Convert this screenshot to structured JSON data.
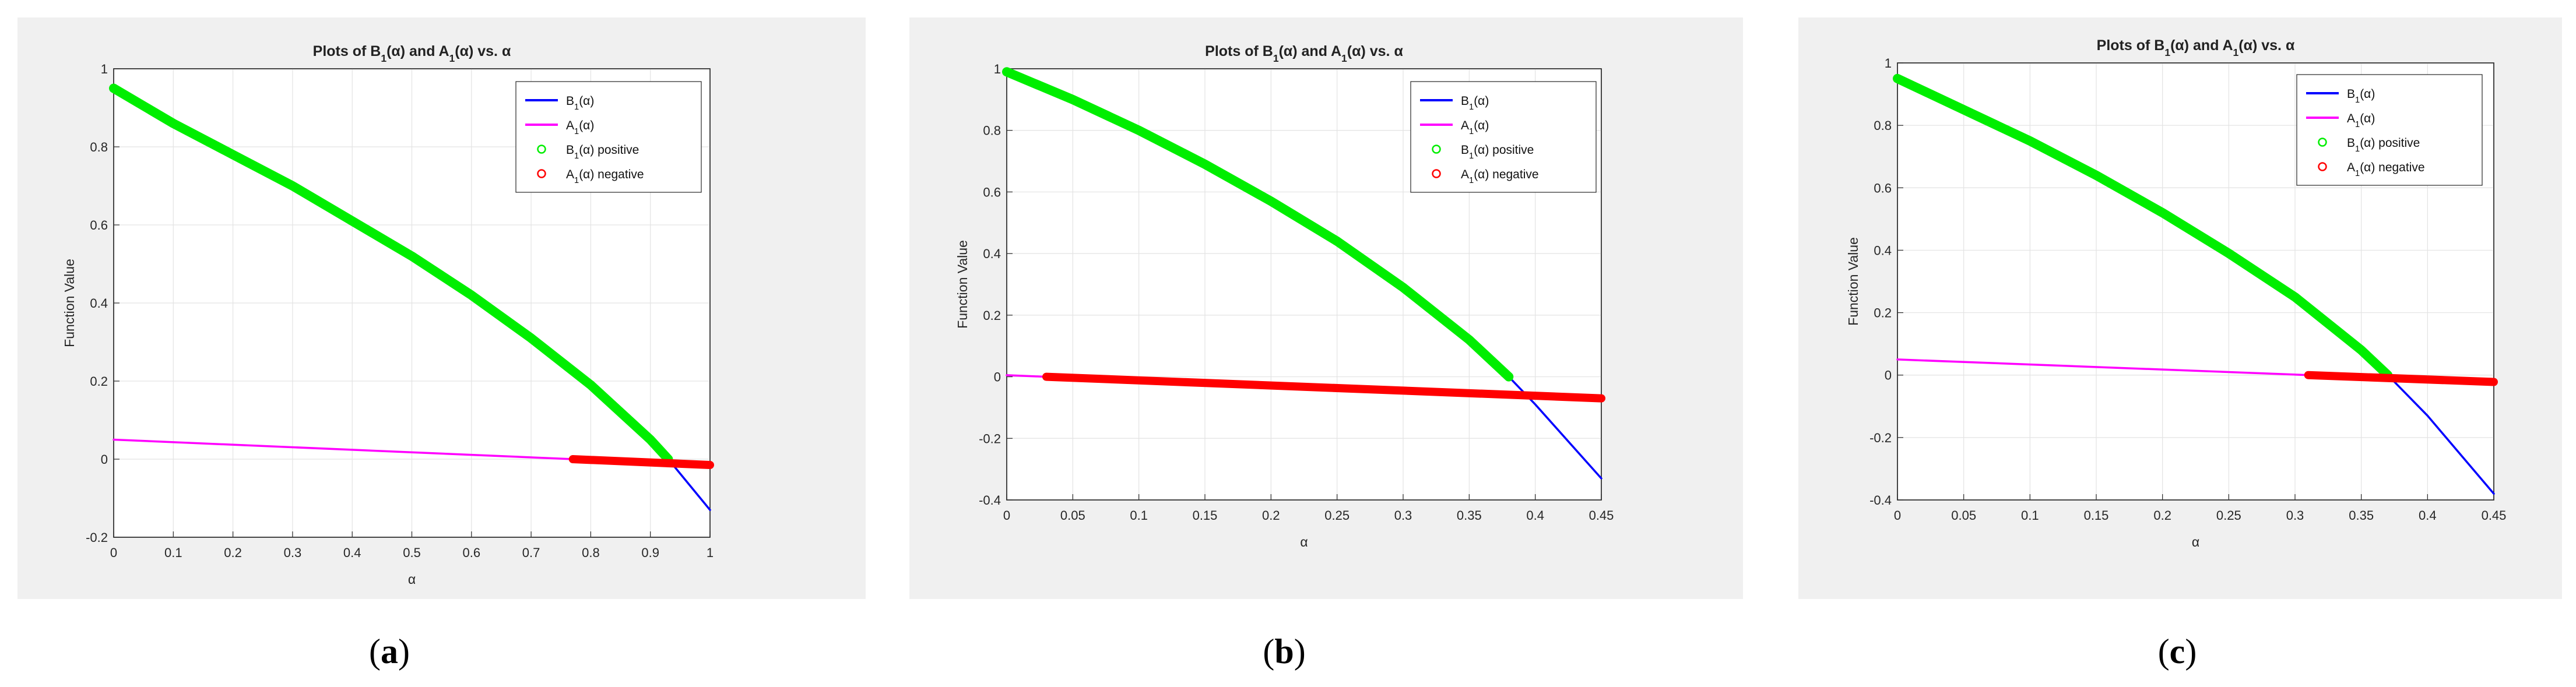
{
  "panel_captions": [
    "(a)",
    "(b)",
    "(c)"
  ],
  "colors": {
    "b1_line": "#0000ff",
    "a1_line": "#ff00ff",
    "b1_positive": "#00ee00",
    "a1_negative": "#ff0000",
    "figure_bg": "#f0f0f0",
    "grid": "#e3e3e3"
  },
  "chart_data": [
    {
      "type": "line",
      "title": "Plots of B₁(α) and A₁(α) vs. α",
      "xlabel": "α",
      "ylabel": "Function Value",
      "xlim": [
        0,
        1
      ],
      "ylim": [
        -0.2,
        1
      ],
      "xticks": [
        "0",
        "0.1",
        "0.2",
        "0.3",
        "0.4",
        "0.5",
        "0.6",
        "0.7",
        "0.8",
        "0.9",
        "1"
      ],
      "yticks": [
        "-0.2",
        "0",
        "0.2",
        "0.4",
        "0.6",
        "0.8",
        "1"
      ],
      "grid": true,
      "legend_position": "top-right",
      "legend": [
        "B₁(α)",
        "A₁(α)",
        "B₁(α) positive",
        "A₁(α) negative"
      ],
      "series": [
        {
          "name": "B₁(α)",
          "style": "line",
          "x": [
            0,
            0.1,
            0.2,
            0.3,
            0.4,
            0.5,
            0.6,
            0.7,
            0.8,
            0.9,
            0.93,
            1.0
          ],
          "y": [
            0.95,
            0.86,
            0.78,
            0.7,
            0.61,
            0.52,
            0.42,
            0.31,
            0.19,
            0.05,
            0.0,
            -0.13
          ]
        },
        {
          "name": "A₁(α)",
          "style": "line",
          "x": [
            0,
            0.77,
            1.0
          ],
          "y": [
            0.05,
            0.0,
            -0.015
          ]
        },
        {
          "name": "B₁(α) positive",
          "style": "markers",
          "x": [
            0,
            0.1,
            0.2,
            0.3,
            0.4,
            0.5,
            0.6,
            0.7,
            0.8,
            0.9,
            0.93
          ],
          "y": [
            0.95,
            0.86,
            0.78,
            0.7,
            0.61,
            0.52,
            0.42,
            0.31,
            0.19,
            0.05,
            0.0
          ]
        },
        {
          "name": "A₁(α) negative",
          "style": "markers",
          "x": [
            0.77,
            1.0
          ],
          "y": [
            0.0,
            -0.015
          ]
        }
      ]
    },
    {
      "type": "line",
      "title": "Plots of B₁(α) and A₁(α) vs. α",
      "xlabel": "α",
      "ylabel": "Function Value",
      "xlim": [
        0,
        0.45
      ],
      "ylim": [
        -0.4,
        1
      ],
      "xticks": [
        "0",
        "0.05",
        "0.1",
        "0.15",
        "0.2",
        "0.25",
        "0.3",
        "0.35",
        "0.4",
        "0.45"
      ],
      "yticks": [
        "-0.4",
        "-0.2",
        "0",
        "0.2",
        "0.4",
        "0.6",
        "0.8",
        "1"
      ],
      "grid": true,
      "legend_position": "top-right",
      "legend": [
        "B₁(α)",
        "A₁(α)",
        "B₁(α) positive",
        "A₁(α) negative"
      ],
      "series": [
        {
          "name": "B₁(α)",
          "style": "line",
          "x": [
            0,
            0.05,
            0.1,
            0.15,
            0.2,
            0.25,
            0.3,
            0.35,
            0.38,
            0.4,
            0.45
          ],
          "y": [
            0.99,
            0.9,
            0.8,
            0.69,
            0.57,
            0.44,
            0.29,
            0.12,
            0.0,
            -0.09,
            -0.33
          ]
        },
        {
          "name": "A₁(α)",
          "style": "line",
          "x": [
            0,
            0.03,
            0.45
          ],
          "y": [
            0.005,
            0.0,
            -0.07
          ]
        },
        {
          "name": "B₁(α) positive",
          "style": "markers",
          "x": [
            0,
            0.05,
            0.1,
            0.15,
            0.2,
            0.25,
            0.3,
            0.35,
            0.38
          ],
          "y": [
            0.99,
            0.9,
            0.8,
            0.69,
            0.57,
            0.44,
            0.29,
            0.12,
            0.0
          ]
        },
        {
          "name": "A₁(α) negative",
          "style": "markers",
          "x": [
            0.03,
            0.45
          ],
          "y": [
            0.0,
            -0.07
          ]
        }
      ]
    },
    {
      "type": "line",
      "title": "Plots of B₁(α) and A₁(α) vs. α",
      "xlabel": "α",
      "ylabel": "Function Value",
      "xlim": [
        0,
        0.45
      ],
      "ylim": [
        -0.4,
        1
      ],
      "xticks": [
        "0",
        "0.05",
        "0.1",
        "0.15",
        "0.2",
        "0.25",
        "0.3",
        "0.35",
        "0.4",
        "0.45"
      ],
      "yticks": [
        "-0.4",
        "-0.2",
        "0",
        "0.2",
        "0.4",
        "0.6",
        "0.8",
        "1"
      ],
      "grid": true,
      "legend_position": "top-right",
      "legend": [
        "B₁(α)",
        "A₁(α)",
        "B₁(α) positive",
        "A₁(α) negative"
      ],
      "series": [
        {
          "name": "B₁(α)",
          "style": "line",
          "x": [
            0,
            0.05,
            0.1,
            0.15,
            0.2,
            0.25,
            0.3,
            0.35,
            0.37,
            0.4,
            0.45
          ],
          "y": [
            0.95,
            0.85,
            0.75,
            0.64,
            0.52,
            0.39,
            0.25,
            0.08,
            0.0,
            -0.13,
            -0.38
          ]
        },
        {
          "name": "A₁(α)",
          "style": "line",
          "x": [
            0,
            0.31,
            0.45
          ],
          "y": [
            0.05,
            0.0,
            -0.022
          ]
        },
        {
          "name": "B₁(α) positive",
          "style": "markers",
          "x": [
            0,
            0.05,
            0.1,
            0.15,
            0.2,
            0.25,
            0.3,
            0.35,
            0.37
          ],
          "y": [
            0.95,
            0.85,
            0.75,
            0.64,
            0.52,
            0.39,
            0.25,
            0.08,
            0.0
          ]
        },
        {
          "name": "A₁(α) negative",
          "style": "markers",
          "x": [
            0.31,
            0.45
          ],
          "y": [
            0.0,
            -0.022
          ]
        }
      ]
    }
  ]
}
